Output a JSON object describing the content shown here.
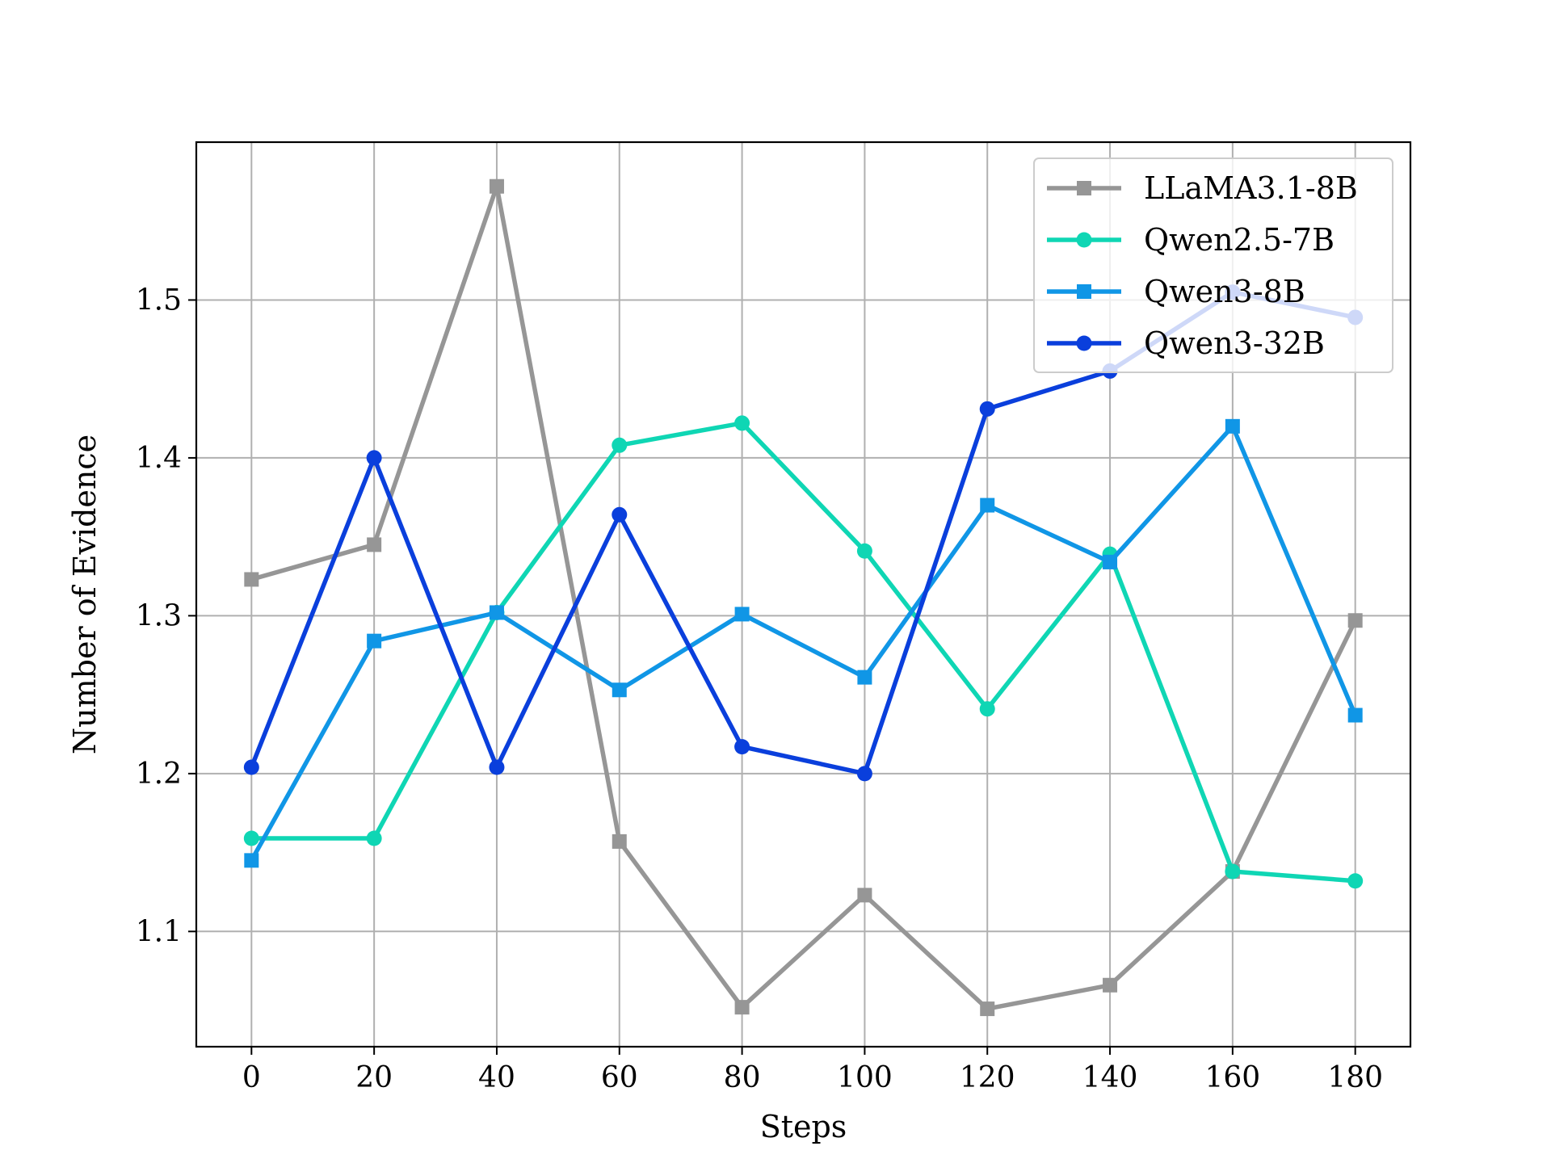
{
  "chart_data": {
    "type": "line",
    "title": "",
    "xlabel": "Steps",
    "ylabel": "Number of Evidence",
    "x": [
      0,
      20,
      40,
      60,
      80,
      100,
      120,
      140,
      160,
      180
    ],
    "xlim": [
      -9,
      189
    ],
    "ylim": [
      1.027,
      1.6
    ],
    "xticks": [
      0,
      20,
      40,
      60,
      80,
      100,
      120,
      140,
      160,
      180
    ],
    "yticks": [
      1.1,
      1.2,
      1.3,
      1.4,
      1.5
    ],
    "xtick_labels": [
      "0",
      "20",
      "40",
      "60",
      "80",
      "100",
      "120",
      "140",
      "160",
      "180"
    ],
    "ytick_labels": [
      "1.1",
      "1.2",
      "1.3",
      "1.4",
      "1.5"
    ],
    "grid": true,
    "legend_position": "top-right",
    "series": [
      {
        "name": "LLaMA3.1-8B",
        "color": "#969696",
        "marker": "square",
        "values": [
          1.323,
          1.345,
          1.572,
          1.157,
          1.052,
          1.123,
          1.051,
          1.066,
          1.138,
          1.297
        ]
      },
      {
        "name": "Qwen2.5-7B",
        "color": "#0fd6b4",
        "marker": "circle",
        "values": [
          1.159,
          1.159,
          1.302,
          1.408,
          1.422,
          1.341,
          1.241,
          1.339,
          1.138,
          1.132
        ]
      },
      {
        "name": "Qwen3-8B",
        "color": "#1096e6",
        "marker": "square",
        "values": [
          1.145,
          1.284,
          1.302,
          1.253,
          1.301,
          1.261,
          1.37,
          1.334,
          1.42,
          1.237
        ]
      },
      {
        "name": "Qwen3-32B",
        "color": "#0a3fdc",
        "marker": "circle",
        "values": [
          1.204,
          1.4,
          1.204,
          1.364,
          1.217,
          1.2,
          1.431,
          1.455,
          1.505,
          1.489
        ]
      }
    ]
  }
}
